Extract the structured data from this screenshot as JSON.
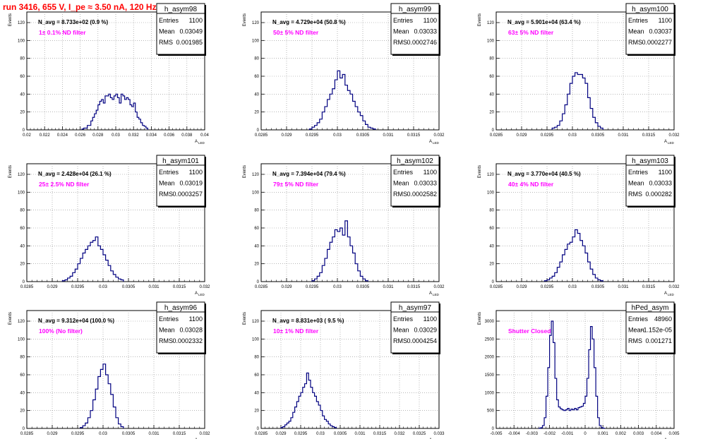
{
  "run_title": "run 3416,   655 V, I_pe ≈ 3.50 nA, 120 Hz",
  "y_axis_title": "Events",
  "x_axis_title": "A",
  "x_axis_subscript": "LED",
  "stats_labels": {
    "entries": "Entries",
    "mean": "Mean",
    "rms": "RMS"
  },
  "colors": {
    "histogram": "#000080",
    "annotation": "#ff00ff",
    "title": "#ff0000",
    "grid": "#8c8c8c"
  },
  "chart_data": [
    {
      "type": "histogram",
      "name": "h_asym98",
      "navg": "N_avg = 8.733e+02 (0.9 %)",
      "filter": "1± 0.1% ND filter",
      "stats": {
        "entries": "1100",
        "mean": "0.03049",
        "rms": "0.001985"
      },
      "xlim": [
        0.02,
        0.04
      ],
      "ylim": [
        0,
        120
      ],
      "xticks": [
        "0.02",
        "0.022",
        "0.024",
        "0.026",
        "0.028",
        "0.03",
        "0.032",
        "0.034",
        "0.036",
        "0.038",
        "0.04"
      ],
      "yticks": [
        "0",
        "20",
        "40",
        "60",
        "80",
        "100",
        "120"
      ],
      "bins": {
        "start": 0.0262,
        "width": 0.0002,
        "counts": [
          1,
          2,
          2,
          5,
          5,
          10,
          14,
          18,
          22,
          28,
          32,
          34,
          30,
          38,
          38,
          40,
          36,
          34,
          38,
          40,
          36,
          30,
          40,
          38,
          34,
          36,
          34,
          28,
          26,
          30,
          20,
          14,
          12,
          8,
          5,
          4,
          2
        ]
      }
    },
    {
      "type": "histogram",
      "name": "h_asym99",
      "navg": "N_avg = 4.729e+04 (50.8 %)",
      "filter": "50± 5% ND filter",
      "stats": {
        "entries": "1100",
        "mean": "0.03033",
        "rms": "0.0002746"
      },
      "xlim": [
        0.0285,
        0.032
      ],
      "ylim": [
        0,
        120
      ],
      "xticks": [
        "0.0285",
        "0.029",
        "0.0295",
        "0.03",
        "0.0305",
        "0.031",
        "0.0315",
        "0.032"
      ],
      "yticks": [
        "0",
        "20",
        "40",
        "60",
        "80",
        "100",
        "120"
      ],
      "bins": {
        "start": 0.02945,
        "width": 5e-05,
        "counts": [
          1,
          3,
          5,
          8,
          12,
          20,
          26,
          34,
          40,
          46,
          56,
          66,
          58,
          62,
          50,
          44,
          40,
          32,
          26,
          20,
          16,
          10,
          6,
          3,
          2,
          1
        ]
      }
    },
    {
      "type": "histogram",
      "name": "h_asym100",
      "navg": "N_avg = 5.901e+04 (63.4 %)",
      "filter": "63± 5% ND filter",
      "stats": {
        "entries": "1100",
        "mean": "0.03037",
        "rms": "0.0002277"
      },
      "xlim": [
        0.0285,
        0.032
      ],
      "ylim": [
        0,
        120
      ],
      "xticks": [
        "0.0285",
        "0.029",
        "0.0295",
        "0.03",
        "0.0305",
        "0.031",
        "0.0315",
        "0.032"
      ],
      "yticks": [
        "0",
        "20",
        "40",
        "60",
        "80",
        "100",
        "120"
      ],
      "bins": {
        "start": 0.0296,
        "width": 5e-05,
        "counts": [
          2,
          3,
          5,
          10,
          18,
          28,
          40,
          52,
          60,
          64,
          62,
          62,
          58,
          52,
          36,
          24,
          14,
          8,
          4,
          2
        ]
      }
    },
    {
      "type": "histogram",
      "name": "h_asym101",
      "navg": "N_avg = 2.428e+04 (26.1 %)",
      "filter": "25± 2.5% ND filter",
      "stats": {
        "entries": "1100",
        "mean": "0.03019",
        "rms": "0.0003257"
      },
      "xlim": [
        0.0285,
        0.032
      ],
      "ylim": [
        0,
        120
      ],
      "xticks": [
        "0.0285",
        "0.029",
        "0.0295",
        "0.03",
        "0.0305",
        "0.031",
        "0.0315",
        "0.032"
      ],
      "yticks": [
        "0",
        "20",
        "40",
        "60",
        "80",
        "100",
        "120"
      ],
      "bins": {
        "start": 0.0292,
        "width": 5e-05,
        "counts": [
          1,
          2,
          4,
          6,
          10,
          14,
          20,
          26,
          32,
          36,
          40,
          44,
          46,
          50,
          40,
          36,
          30,
          24,
          18,
          12,
          8,
          5,
          3,
          2
        ]
      }
    },
    {
      "type": "histogram",
      "name": "h_asym102",
      "navg": "N_avg = 7.394e+04 (79.4 %)",
      "filter": "79± 5% ND filter",
      "stats": {
        "entries": "1100",
        "mean": "0.03033",
        "rms": "0.0002582"
      },
      "xlim": [
        0.0285,
        0.032
      ],
      "ylim": [
        0,
        120
      ],
      "xticks": [
        "0.0285",
        "0.029",
        "0.0295",
        "0.03",
        "0.0305",
        "0.031",
        "0.0315",
        "0.032"
      ],
      "yticks": [
        "0",
        "20",
        "40",
        "60",
        "80",
        "100",
        "120"
      ],
      "bins": {
        "start": 0.0295,
        "width": 5e-05,
        "counts": [
          1,
          3,
          6,
          10,
          18,
          26,
          36,
          44,
          50,
          58,
          56,
          60,
          52,
          68,
          50,
          40,
          32,
          20,
          12,
          6,
          3,
          1
        ]
      }
    },
    {
      "type": "histogram",
      "name": "h_asym103",
      "navg": "N_avg = 3.770e+04 (40.5 %)",
      "filter": "40± 4% ND filter",
      "stats": {
        "entries": "1100",
        "mean": "0.03033",
        "rms": "0.000282"
      },
      "xlim": [
        0.0285,
        0.032
      ],
      "ylim": [
        0,
        120
      ],
      "xticks": [
        "0.0285",
        "0.029",
        "0.0295",
        "0.03",
        "0.0305",
        "0.031",
        "0.0315",
        "0.032"
      ],
      "yticks": [
        "0",
        "20",
        "40",
        "60",
        "80",
        "100",
        "120"
      ],
      "bins": {
        "start": 0.02945,
        "width": 5e-05,
        "counts": [
          1,
          2,
          4,
          6,
          10,
          16,
          22,
          30,
          36,
          42,
          44,
          50,
          58,
          54,
          46,
          40,
          32,
          22,
          14,
          8,
          4,
          2,
          1
        ]
      }
    },
    {
      "type": "histogram",
      "name": "h_asym96",
      "navg": "N_avg = 9.312e+04 (100.0 %)",
      "filter": "100% (No filter)",
      "stats": {
        "entries": "1100",
        "mean": "0.03028",
        "rms": "0.0002332"
      },
      "xlim": [
        0.0285,
        0.032
      ],
      "ylim": [
        0,
        120
      ],
      "xticks": [
        "0.0285",
        "0.029",
        "0.0295",
        "0.03",
        "0.0305",
        "0.031",
        "0.0315",
        "0.032"
      ],
      "yticks": [
        "0",
        "20",
        "40",
        "60",
        "80",
        "100",
        "120"
      ],
      "bins": {
        "start": 0.02955,
        "width": 5e-05,
        "counts": [
          1,
          3,
          6,
          12,
          20,
          32,
          44,
          58,
          66,
          72,
          60,
          50,
          38,
          24,
          12,
          5,
          2
        ]
      }
    },
    {
      "type": "histogram",
      "name": "h_asym97",
      "navg": "N_avg = 8.831e+03 ( 9.5 %)",
      "filter": "10± 1% ND filter",
      "stats": {
        "entries": "1100",
        "mean": "0.03029",
        "rms": "0.0004254"
      },
      "xlim": [
        0.0285,
        0.033
      ],
      "ylim": [
        0,
        120
      ],
      "xticks": [
        "0.0285",
        "0.029",
        "0.0295",
        "0.03",
        "0.0305",
        "0.031",
        "0.0315",
        "0.032",
        "0.0325",
        "0.033"
      ],
      "yticks": [
        "0",
        "20",
        "40",
        "60",
        "80",
        "100",
        "120"
      ],
      "bins": {
        "start": 0.029,
        "width": 5e-05,
        "counts": [
          1,
          2,
          4,
          6,
          8,
          12,
          18,
          24,
          30,
          36,
          40,
          46,
          50,
          62,
          54,
          46,
          40,
          36,
          30,
          26,
          20,
          14,
          10,
          8,
          5,
          3,
          2,
          1
        ]
      }
    },
    {
      "type": "histogram",
      "name": "hPed_asym",
      "navg": "",
      "filter": "Shutter Closed",
      "stats": {
        "entries": "48960",
        "mean": "-1.152e-05",
        "rms": "0.001271"
      },
      "xlim": [
        -0.005,
        0.005
      ],
      "ylim": [
        0,
        3000
      ],
      "xticks": [
        "-0.005",
        "-0.004",
        "-0.003",
        "-0.002",
        "-0.001",
        "0",
        "0.001",
        "0.002",
        "0.003",
        "0.004",
        "0.005"
      ],
      "yticks": [
        "0",
        "500",
        "1000",
        "1500",
        "2000",
        "2500",
        "3000"
      ],
      "bins": {
        "start": -0.0026,
        "width": 0.0001,
        "counts": [
          5,
          20,
          80,
          300,
          900,
          1700,
          2600,
          3000,
          2400,
          1400,
          800,
          600,
          550,
          520,
          500,
          520,
          560,
          500,
          540,
          520,
          560,
          520,
          580,
          600,
          620,
          700,
          900,
          1400,
          2200,
          2850,
          2500,
          1700,
          900,
          300,
          80,
          20,
          5
        ]
      }
    }
  ]
}
